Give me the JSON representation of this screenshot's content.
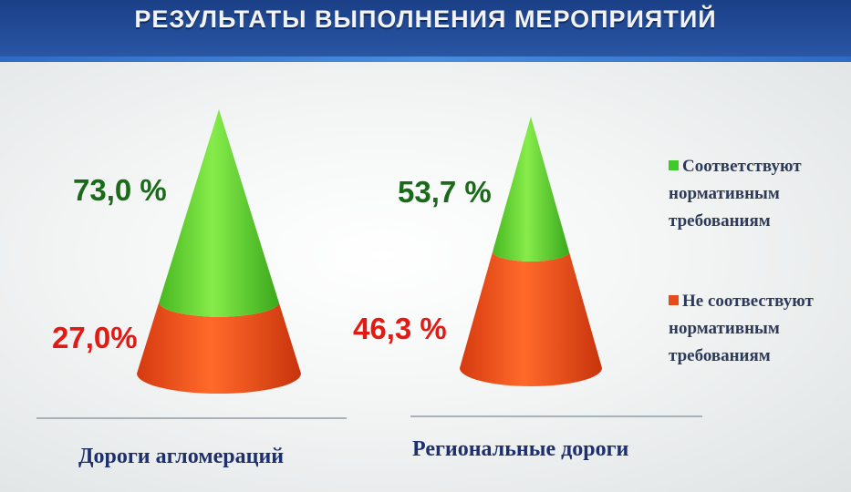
{
  "title": "РЕЗУЛЬТАТЫ ВЫПОЛНЕНИЯ МЕРОПРИЯТИЙ",
  "colors": {
    "green": "#5fd83a",
    "red": "#f24a15",
    "header": "#234c98"
  },
  "legend": [
    {
      "label": "Соответствуют\nнормативным\nтребованиям",
      "color": "#3fca2a"
    },
    {
      "label": "Не соотвествуют\nнормативным\nтребованиям",
      "color": "#e64b1c"
    }
  ],
  "chart_data": {
    "type": "bar",
    "shape": "cone",
    "stacked": true,
    "categories": [
      "Дороги агломераций",
      "Региональные дороги"
    ],
    "series": [
      {
        "name": "Соответствуют нормативным требованиям",
        "values": [
          73.0,
          53.7
        ]
      },
      {
        "name": "Не соотвествуют нормативным требованиям",
        "values": [
          27.0,
          46.3
        ]
      }
    ],
    "data_labels": [
      {
        "green": "73,0 %",
        "red": "27,0%"
      },
      {
        "green": "53,7 %",
        "red": "46,3 %"
      }
    ],
    "legend_position": "right"
  }
}
